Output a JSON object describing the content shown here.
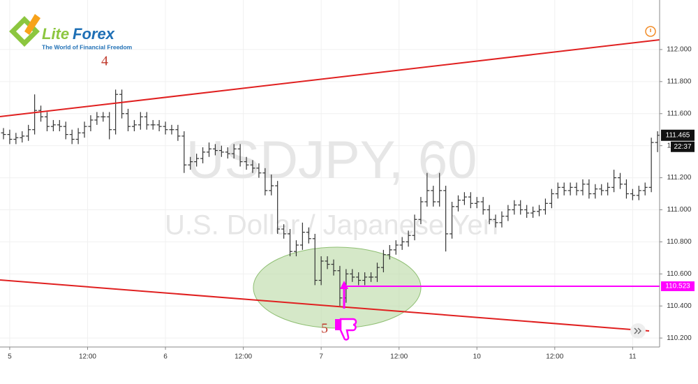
{
  "chart_data": {
    "type": "ohlc",
    "title": "USDJPY, 60",
    "subtitle": "U.S. Dollar / Japanese Yen",
    "logo": [
      "Lite",
      "Forex"
    ],
    "tagline": "The World of Financial Freedom",
    "annotations": [
      "4",
      "5"
    ],
    "color": "#333333",
    "grid": true,
    "x": [
      -1,
      0,
      1,
      2,
      3,
      4,
      5,
      6,
      7,
      8,
      9,
      10,
      11,
      12,
      13,
      14,
      15,
      16,
      17,
      18,
      19,
      20,
      21,
      22,
      23,
      24,
      25,
      26,
      27,
      28,
      29,
      30,
      31,
      32,
      33,
      34,
      35,
      36,
      37,
      38,
      39,
      40,
      41,
      42,
      43,
      44,
      45,
      46,
      47,
      48,
      49,
      50,
      51,
      52,
      53,
      54,
      55,
      56,
      57,
      58,
      59,
      60,
      61,
      62,
      63,
      64,
      65,
      66,
      67,
      68,
      69,
      70,
      71,
      72,
      73,
      74,
      75,
      76,
      77,
      78,
      79,
      80,
      81,
      82,
      83,
      84,
      85,
      86,
      87,
      88,
      89,
      90,
      91,
      92,
      93,
      94,
      95,
      96,
      97,
      98,
      99,
      100,
      101,
      102,
      103,
      104
    ],
    "open": [
      111.48,
      111.47,
      111.44,
      111.45,
      111.46,
      111.5,
      111.62,
      111.58,
      111.52,
      111.53,
      111.52,
      111.47,
      111.44,
      111.48,
      111.52,
      111.56,
      111.58,
      111.58,
      111.5,
      111.72,
      111.6,
      111.52,
      111.53,
      111.58,
      111.53,
      111.53,
      111.52,
      111.5,
      111.5,
      111.46,
      111.28,
      111.3,
      111.32,
      111.36,
      111.38,
      111.37,
      111.36,
      111.35,
      111.38,
      111.3,
      111.28,
      111.26,
      111.23,
      111.12,
      111.15,
      110.88,
      110.85,
      110.74,
      110.78,
      110.86,
      110.82,
      110.56,
      110.68,
      110.66,
      110.62,
      110.45,
      110.6,
      110.58,
      110.56,
      110.58,
      110.58,
      110.64,
      110.72,
      110.75,
      110.78,
      110.8,
      110.84,
      110.94,
      111.05,
      111.12,
      111.05,
      111.12,
      110.85,
      111.02,
      111.06,
      111.08,
      111.04,
      111.05,
      111.0,
      110.94,
      110.92,
      110.96,
      111.0,
      111.03,
      111.0,
      110.98,
      110.99,
      111.0,
      111.04,
      111.1,
      111.14,
      111.12,
      111.14,
      111.12,
      111.16,
      111.1,
      111.13,
      111.12,
      111.14,
      111.2,
      111.16,
      111.1,
      111.09,
      111.12,
      111.14,
      111.42
    ],
    "high": [
      111.51,
      111.5,
      111.48,
      111.49,
      111.53,
      111.72,
      111.65,
      111.61,
      111.56,
      111.56,
      111.55,
      111.5,
      111.51,
      111.55,
      111.59,
      111.61,
      111.61,
      111.61,
      111.75,
      111.75,
      111.63,
      111.56,
      111.61,
      111.61,
      111.56,
      111.56,
      111.55,
      111.53,
      111.53,
      111.49,
      111.33,
      111.35,
      111.39,
      111.42,
      111.41,
      111.4,
      111.39,
      111.41,
      111.41,
      111.33,
      111.31,
      111.29,
      111.26,
      111.22,
      111.18,
      110.91,
      110.88,
      110.81,
      110.92,
      110.89,
      110.85,
      110.71,
      110.71,
      110.69,
      110.65,
      110.63,
      110.63,
      110.61,
      110.61,
      110.61,
      110.67,
      110.75,
      110.78,
      110.81,
      110.83,
      110.87,
      110.97,
      111.08,
      111.23,
      111.15,
      111.23,
      111.15,
      111.05,
      111.09,
      111.11,
      111.11,
      111.08,
      111.08,
      111.03,
      110.97,
      110.99,
      111.03,
      111.06,
      111.06,
      111.03,
      111.02,
      111.03,
      111.07,
      111.13,
      111.17,
      111.17,
      111.17,
      111.17,
      111.19,
      111.19,
      111.16,
      111.16,
      111.17,
      111.25,
      111.23,
      111.19,
      111.13,
      111.15,
      111.17,
      111.45,
      111.49
    ],
    "low": [
      111.44,
      111.41,
      111.41,
      111.42,
      111.43,
      111.47,
      111.55,
      111.49,
      111.49,
      111.49,
      111.44,
      111.41,
      111.41,
      111.45,
      111.49,
      111.53,
      111.55,
      111.44,
      111.47,
      111.57,
      111.49,
      111.49,
      111.5,
      111.5,
      111.5,
      111.49,
      111.47,
      111.47,
      111.43,
      111.23,
      111.25,
      111.27,
      111.29,
      111.33,
      111.34,
      111.33,
      111.32,
      111.32,
      111.27,
      111.25,
      111.23,
      111.2,
      111.09,
      111.09,
      110.85,
      110.82,
      110.71,
      110.71,
      110.75,
      110.79,
      110.53,
      110.53,
      110.63,
      110.59,
      110.4,
      110.42,
      110.55,
      110.53,
      110.53,
      110.55,
      110.55,
      110.61,
      110.69,
      110.72,
      110.75,
      110.77,
      110.81,
      110.91,
      111.02,
      111.02,
      111.02,
      110.74,
      110.82,
      110.99,
      111.03,
      111.01,
      111.01,
      110.97,
      110.91,
      110.89,
      110.89,
      110.93,
      110.97,
      110.97,
      110.95,
      110.95,
      110.96,
      110.97,
      111.01,
      111.07,
      111.09,
      111.09,
      111.09,
      111.09,
      111.07,
      111.07,
      111.09,
      111.09,
      111.11,
      111.13,
      111.07,
      111.06,
      111.06,
      111.09,
      111.11,
      111.36
    ],
    "close": [
      111.47,
      111.44,
      111.45,
      111.46,
      111.5,
      111.62,
      111.58,
      111.52,
      111.53,
      111.52,
      111.47,
      111.44,
      111.48,
      111.52,
      111.56,
      111.58,
      111.58,
      111.5,
      111.72,
      111.6,
      111.52,
      111.53,
      111.58,
      111.53,
      111.53,
      111.52,
      111.5,
      111.5,
      111.46,
      111.28,
      111.3,
      111.32,
      111.36,
      111.38,
      111.37,
      111.36,
      111.35,
      111.38,
      111.3,
      111.28,
      111.26,
      111.23,
      111.12,
      111.15,
      110.88,
      110.85,
      110.74,
      110.78,
      110.86,
      110.82,
      110.56,
      110.68,
      110.66,
      110.62,
      110.45,
      110.6,
      110.58,
      110.56,
      110.58,
      110.58,
      110.64,
      110.72,
      110.75,
      110.78,
      110.8,
      110.84,
      110.94,
      111.05,
      111.12,
      111.05,
      111.12,
      110.85,
      111.02,
      111.06,
      111.08,
      111.04,
      111.05,
      111.0,
      110.94,
      110.92,
      110.96,
      111.0,
      111.03,
      111.0,
      110.98,
      110.99,
      111.0,
      111.04,
      111.1,
      111.14,
      111.12,
      111.14,
      111.12,
      111.16,
      111.1,
      111.13,
      111.12,
      111.14,
      111.2,
      111.16,
      111.1,
      111.09,
      111.12,
      111.14,
      111.42,
      111.465
    ],
    "last_price": {
      "value": 111.465,
      "label": "111.465"
    },
    "timer": "22:37",
    "level": {
      "value": 110.523,
      "label": "110.523",
      "color": "#ff00ff"
    },
    "xlim": [
      -1.56,
      104.33
    ],
    "ylim": [
      110.144,
      112.309
    ],
    "xticks": [
      {
        "value": 0,
        "label": "5"
      },
      {
        "value": 12.5,
        "label": "12:00"
      },
      {
        "value": 25,
        "label": "6"
      },
      {
        "value": 37.5,
        "label": "12:00"
      },
      {
        "value": 50,
        "label": "7"
      },
      {
        "value": 62.5,
        "label": "12:00"
      },
      {
        "value": 75,
        "label": "10"
      },
      {
        "value": 87.5,
        "label": "12:00"
      },
      {
        "value": 100,
        "label": "11"
      }
    ],
    "yticks": [
      {
        "value": 112,
        "label": "112.000"
      },
      {
        "value": 111.8,
        "label": "111.800"
      },
      {
        "value": 111.6,
        "label": "111.600"
      },
      {
        "value": 111.4,
        "label": "111.400"
      },
      {
        "value": 111.2,
        "label": "111.200"
      },
      {
        "value": 111,
        "label": "111.000"
      },
      {
        "value": 110.8,
        "label": "110.800"
      },
      {
        "value": 110.6,
        "label": "110.600"
      },
      {
        "value": 110.4,
        "label": "110.400"
      },
      {
        "value": 110.2,
        "label": "110.200"
      }
    ]
  }
}
